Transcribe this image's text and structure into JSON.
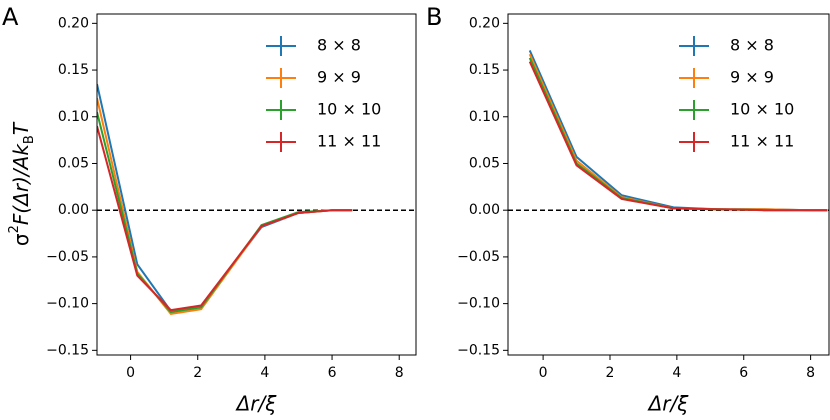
{
  "chart_data": [
    {
      "type": "line",
      "title": "A",
      "xlabel": "Δr/ξ",
      "ylabel": [
        "σ",
        "2",
        "F(Δr)/Ak",
        "B",
        "T"
      ],
      "x": [
        -1,
        0.2,
        1.2,
        2.1,
        3.9,
        5.0,
        6.0,
        6.6
      ],
      "series": [
        {
          "name": "8 × 8",
          "color": "#1f77b4",
          "values": [
            0.135,
            -0.058,
            -0.108,
            -0.103,
            -0.018,
            -0.003,
            0,
            0
          ]
        },
        {
          "name": "9 × 9",
          "color": "#ff7f0e",
          "values": [
            0.12,
            -0.066,
            -0.111,
            -0.106,
            -0.017,
            -0.003,
            0,
            0
          ]
        },
        {
          "name": "10 × 10",
          "color": "#2ca02c",
          "values": [
            0.105,
            -0.068,
            -0.109,
            -0.104,
            -0.016,
            -0.002,
            0,
            0
          ]
        },
        {
          "name": "11 × 11",
          "color": "#d62728",
          "values": [
            0.09,
            -0.07,
            -0.107,
            -0.102,
            -0.017,
            -0.003,
            0,
            0
          ]
        }
      ],
      "xlim": [
        -1,
        8.5
      ],
      "xticks": [
        0,
        2,
        4,
        6,
        8
      ],
      "ylim": [
        -0.155,
        0.21
      ],
      "yticks": [
        {
          "value": -0.15,
          "label": "−0.15"
        },
        {
          "value": -0.1,
          "label": "−0.10"
        },
        {
          "value": -0.05,
          "label": "−0.05"
        },
        {
          "value": 0,
          "label": "0.00"
        },
        {
          "value": 0.05,
          "label": "0.05"
        },
        {
          "value": 0.1,
          "label": "0.10"
        },
        {
          "value": 0.15,
          "label": "0.15"
        },
        {
          "value": 0.2,
          "label": "0.20"
        }
      ],
      "hline": 0,
      "legend": "upper right"
    },
    {
      "type": "line",
      "title": "B",
      "xlabel": "Δr/ξ",
      "x": [
        -0.4,
        1.0,
        2.35,
        3.9,
        5.2,
        6.6,
        8.0,
        8.5
      ],
      "series": [
        {
          "name": "8 × 8",
          "color": "#1f77b4",
          "values": [
            0.171,
            0.057,
            0.016,
            0.003,
            0.001,
            0.001,
            0,
            0
          ]
        },
        {
          "name": "9 × 9",
          "color": "#ff7f0e",
          "values": [
            0.167,
            0.053,
            0.014,
            0.002,
            0.001,
            0.001,
            0,
            0
          ]
        },
        {
          "name": "10 × 10",
          "color": "#2ca02c",
          "values": [
            0.163,
            0.05,
            0.013,
            0.002,
            0.001,
            0,
            0,
            0
          ]
        },
        {
          "name": "11 × 11",
          "color": "#d62728",
          "values": [
            0.159,
            0.048,
            0.012,
            0.002,
            0.001,
            0,
            0,
            0
          ]
        }
      ],
      "xlim": [
        -1.05,
        8.55
      ],
      "xticks": [
        0,
        2,
        4,
        6,
        8
      ],
      "ylim": [
        -0.155,
        0.21
      ],
      "yticks": [
        {
          "value": -0.15,
          "label": "−0.15"
        },
        {
          "value": -0.1,
          "label": "−0.10"
        },
        {
          "value": -0.05,
          "label": "−0.05"
        },
        {
          "value": 0,
          "label": "0.00"
        },
        {
          "value": 0.05,
          "label": "0.05"
        },
        {
          "value": 0.1,
          "label": "0.10"
        },
        {
          "value": 0.15,
          "label": "0.15"
        },
        {
          "value": 0.2,
          "label": "0.20"
        }
      ],
      "hline": 0,
      "legend": "upper right"
    }
  ]
}
